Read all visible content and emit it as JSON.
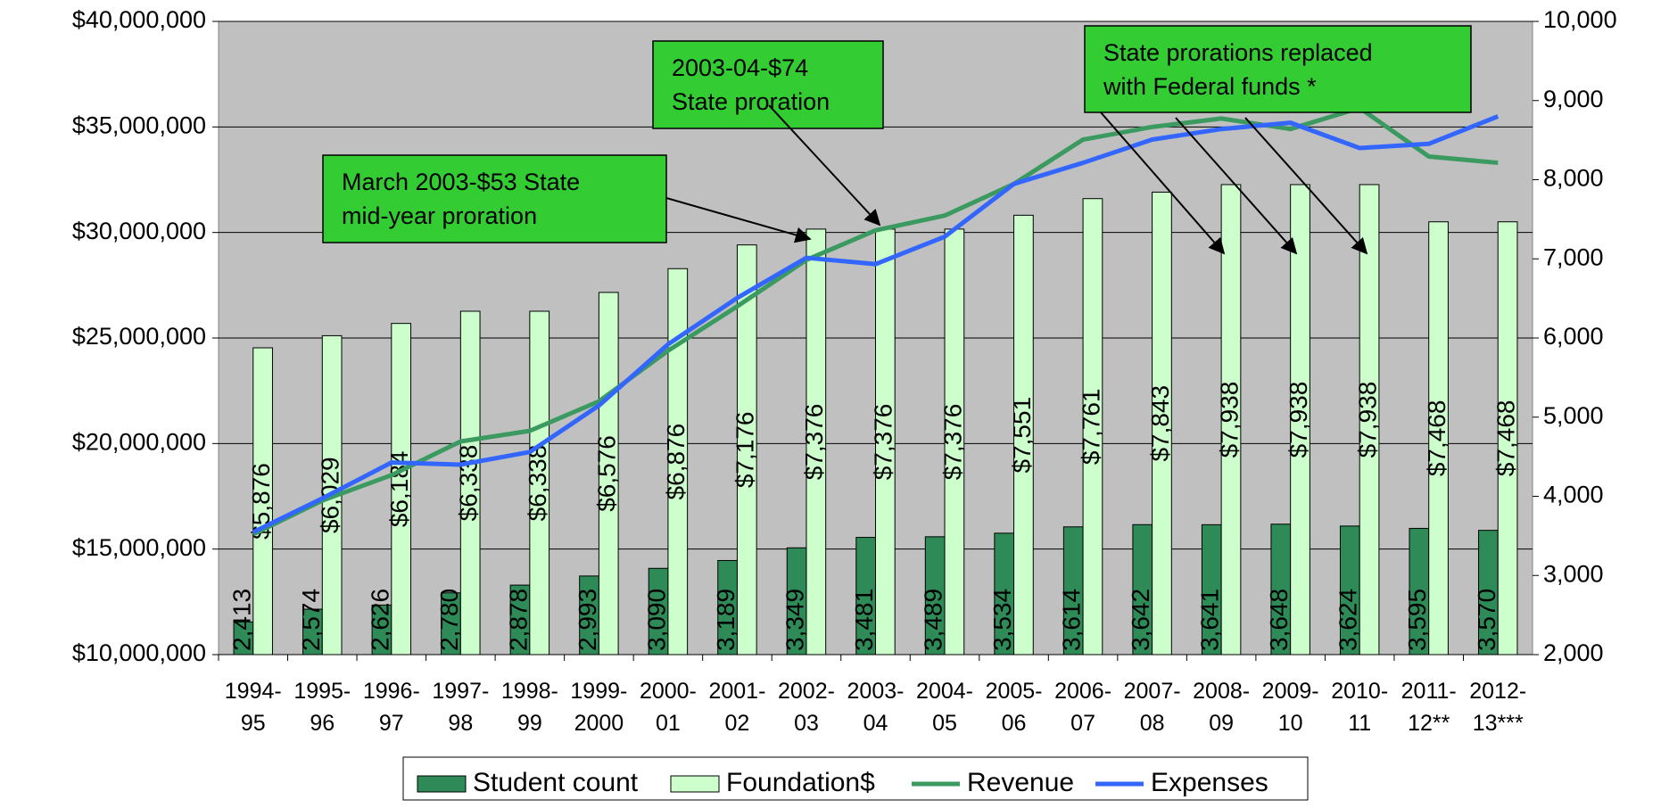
{
  "chart_data": {
    "type": "bar-line",
    "categories": [
      "1994-\n95",
      "1995-\n96",
      "1996-\n97",
      "1997-\n98",
      "1998-\n99",
      "1999-\n2000",
      "2000-\n01",
      "2001-\n02",
      "2002-\n03",
      "2003-\n04",
      "2004-\n05",
      "2005-\n06",
      "2006-\n07",
      "2007-\n08",
      "2008-\n09",
      "2009-\n10",
      "2010-\n11",
      "2011-\n12**",
      "2012-\n13***"
    ],
    "series": [
      {
        "name": "Student count",
        "type": "bar",
        "axis": "y2",
        "color": "#2e8b57",
        "values": [
          2413,
          2574,
          2626,
          2780,
          2878,
          2993,
          3090,
          3189,
          3349,
          3481,
          3489,
          3534,
          3614,
          3642,
          3641,
          3648,
          3624,
          3595,
          3570
        ],
        "value_labels": [
          "2,413",
          "2,574",
          "2,626",
          "2,780",
          "2,878",
          "2,993",
          "3,090",
          "3,189",
          "3,349",
          "3,481",
          "3,489",
          "3,534",
          "3,614",
          "3,642",
          "3,641",
          "3,648",
          "3,624",
          "3,595",
          "3,570"
        ]
      },
      {
        "name": "Foundation$",
        "type": "bar",
        "axis": "y2",
        "color": "#ccffcc",
        "values": [
          5876,
          6029,
          6184,
          6338,
          6338,
          6576,
          6876,
          7176,
          7376,
          7376,
          7376,
          7551,
          7761,
          7843,
          7938,
          7938,
          7938,
          7468,
          7468
        ],
        "value_labels": [
          "$5,876",
          "$6,029",
          "$6,184",
          "$6,338",
          "$6,338",
          "$6,576",
          "$6,876",
          "$7,176",
          "$7,376",
          "$7,376",
          "$7,376",
          "$7,551",
          "$7,761",
          "$7,843",
          "$7,938",
          "$7,938",
          "$7,938",
          "$7,468",
          "$7,468"
        ]
      },
      {
        "name": "Revenue",
        "type": "line",
        "color": "#3a9a5f",
        "values": [
          15700000,
          17300000,
          18500000,
          20100000,
          20600000,
          22000000,
          24400000,
          26500000,
          28700000,
          30100000,
          30800000,
          32300000,
          34400000,
          35000000,
          35400000,
          34900000,
          35900000,
          33600000,
          33300000
        ]
      },
      {
        "name": "Expenses",
        "type": "line",
        "color": "#3366ff",
        "values": [
          15800000,
          17400000,
          19100000,
          19000000,
          19600000,
          21800000,
          24700000,
          26900000,
          28800000,
          28500000,
          29800000,
          32300000,
          33300000,
          34400000,
          34900000,
          35200000,
          34000000,
          34200000,
          35500000
        ]
      }
    ],
    "ylim": [
      10000000,
      40000000
    ],
    "yticks": [
      {
        "value": 10000000,
        "label": "$10,000,000"
      },
      {
        "value": 15000000,
        "label": "$15,000,000"
      },
      {
        "value": 20000000,
        "label": "$20,000,000"
      },
      {
        "value": 25000000,
        "label": "$25,000,000"
      },
      {
        "value": 30000000,
        "label": "$30,000,000"
      },
      {
        "value": 35000000,
        "label": "$35,000,000"
      },
      {
        "value": 40000000,
        "label": "$40,000,000"
      }
    ],
    "y2lim": [
      2000,
      10000
    ],
    "y2ticks": [
      {
        "value": 2000,
        "label": "2,000"
      },
      {
        "value": 3000,
        "label": "3,000"
      },
      {
        "value": 4000,
        "label": "4,000"
      },
      {
        "value": 5000,
        "label": "5,000"
      },
      {
        "value": 6000,
        "label": "6,000"
      },
      {
        "value": 7000,
        "label": "7,000"
      },
      {
        "value": 8000,
        "label": "8,000"
      },
      {
        "value": 9000,
        "label": "9,000"
      },
      {
        "value": 10000,
        "label": "10,000"
      }
    ],
    "grid": true,
    "legend": "bottom",
    "annotations": [
      "March 2003-$53 State\nmid-year proration",
      "2003-04-$74\nState proration",
      "State prorations replaced\nwith Federal funds *"
    ]
  }
}
